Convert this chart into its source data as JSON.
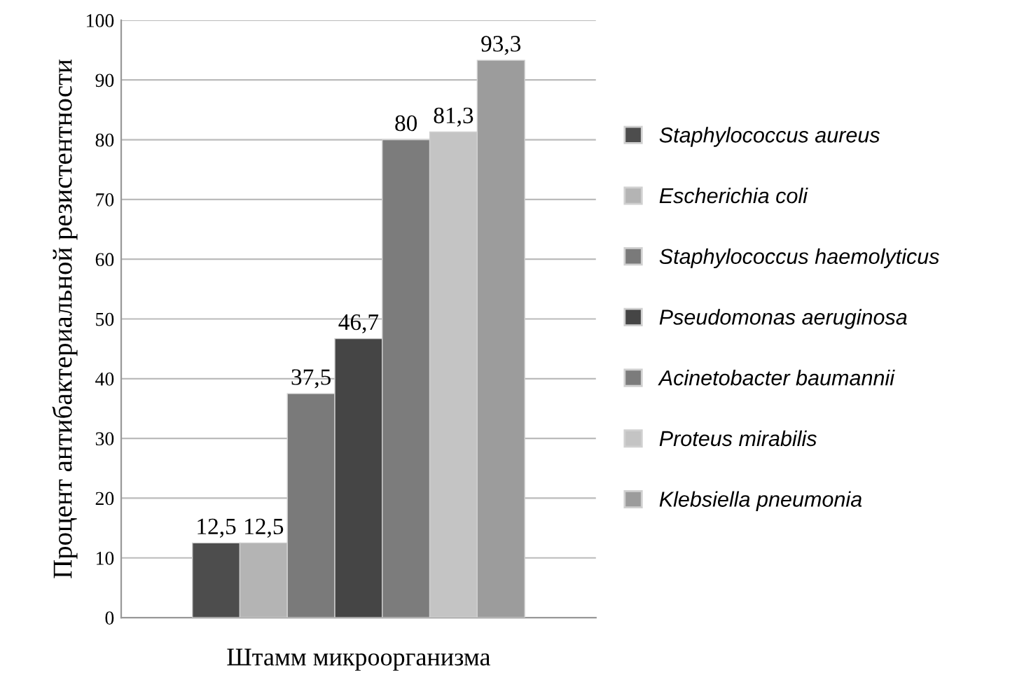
{
  "chart_data": {
    "type": "bar",
    "xlabel": "Штамм микроорганизма",
    "ylabel": "Процент антибактериальной резистентности",
    "categories": [
      null
    ],
    "series": [
      {
        "name": "Staphylococcus aureus",
        "color": "#4d4d4d",
        "values": [
          12.5
        ],
        "value_labels": [
          "12,5"
        ]
      },
      {
        "name": "Escherichia coli",
        "color": "#b4b4b4",
        "values": [
          12.5
        ],
        "value_labels": [
          "12,5"
        ]
      },
      {
        "name": "Staphylococcus haemolyticus",
        "color": "#7a7a7a",
        "values": [
          37.5
        ],
        "value_labels": [
          "37,5"
        ]
      },
      {
        "name": "Pseudomonas aeruginosa",
        "color": "#454545",
        "values": [
          46.7
        ],
        "value_labels": [
          "46,7"
        ]
      },
      {
        "name": "Acinetobacter baumannii",
        "color": "#7c7c7c",
        "values": [
          80
        ],
        "value_labels": [
          "80"
        ]
      },
      {
        "name": "Proteus mirabilis",
        "color": "#c4c4c4",
        "values": [
          81.3
        ],
        "value_labels": [
          "81,3"
        ]
      },
      {
        "name": "Klebsiella pneumonia",
        "color": "#9c9c9c",
        "values": [
          93.3
        ],
        "value_labels": [
          "93,3"
        ]
      }
    ],
    "ylim": [
      0,
      100
    ],
    "yticks": [
      0,
      10,
      20,
      30,
      40,
      50,
      60,
      70,
      80,
      90,
      100
    ],
    "grid": "y",
    "legend": "right"
  }
}
